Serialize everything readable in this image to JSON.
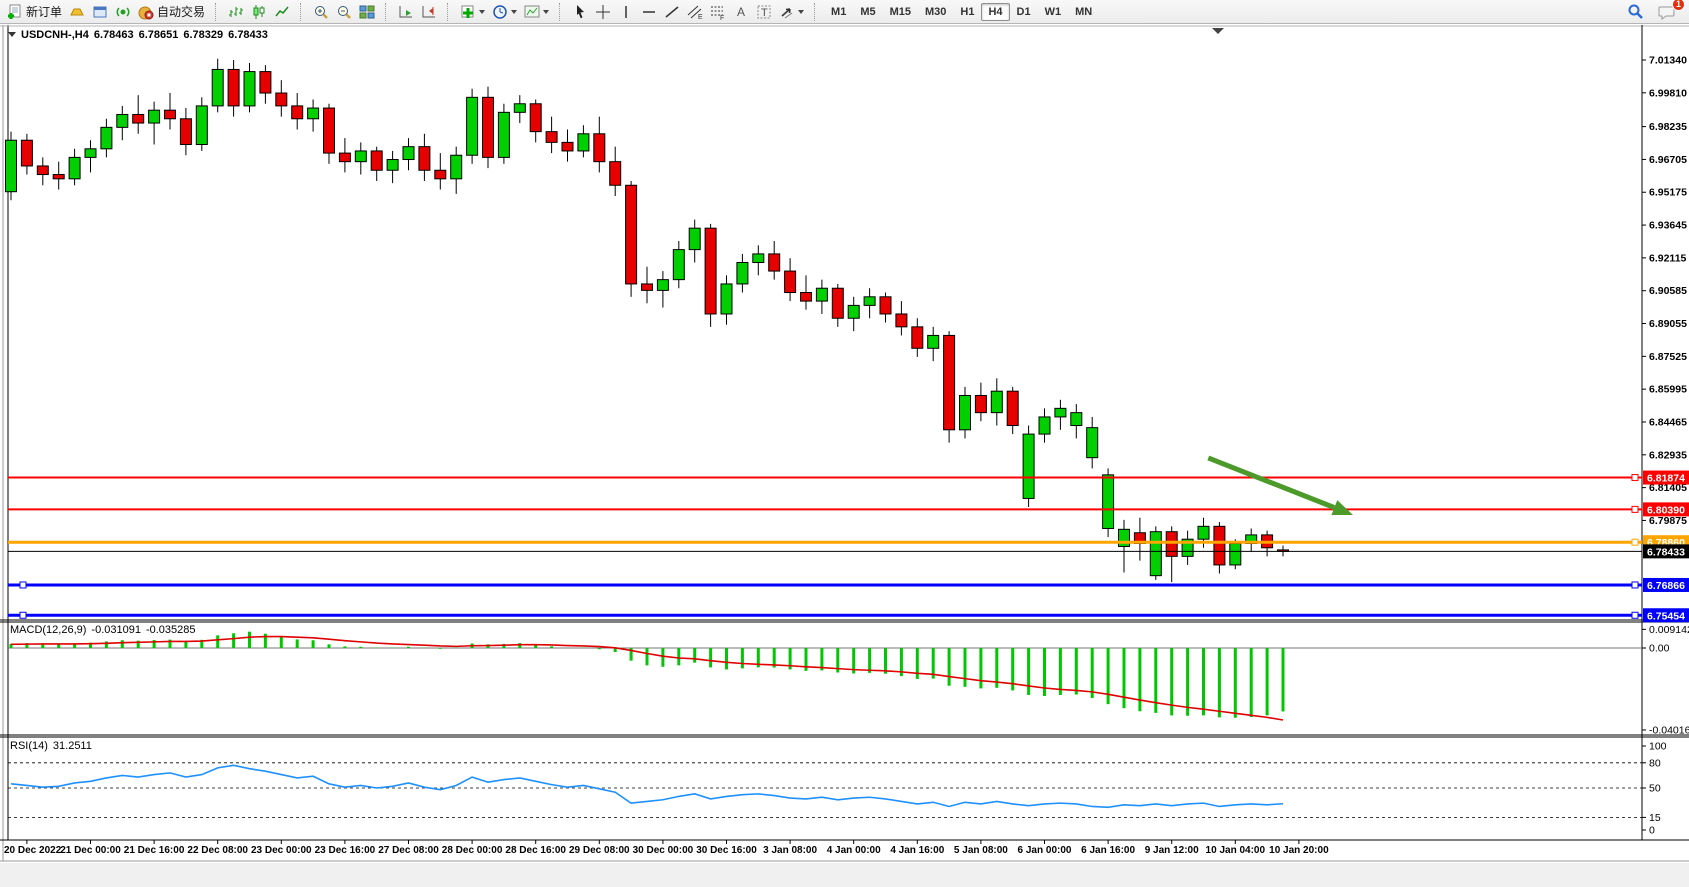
{
  "toolbar": {
    "new_order_label": "新订单",
    "auto_trading_label": "自动交易",
    "timeframes": [
      "M1",
      "M5",
      "M15",
      "M30",
      "H1",
      "H4",
      "D1",
      "W1",
      "MN"
    ],
    "active_timeframe": "H4",
    "chat_badge": "1"
  },
  "chart": {
    "title": "USDCNH-,H4",
    "open": "6.78463",
    "high": "6.78651",
    "low": "6.78329",
    "close": "6.78433"
  },
  "indicators": {
    "macd": {
      "label": "MACD(12,26,9)",
      "main_value": "-0.031091",
      "signal_value": "-0.035285"
    },
    "rsi": {
      "label": "RSI(14)",
      "value": "31.2511"
    }
  },
  "chart_data": {
    "type": "candlestick",
    "symbol": "USDCNH-",
    "timeframe": "H4",
    "current_bar": {
      "open": 6.78463,
      "high": 6.78651,
      "low": 6.78329,
      "close": 6.78433
    },
    "colors": {
      "bull": "#00d000",
      "bear": "#e60000",
      "outline": "#000000",
      "macd_histogram": "#00c800",
      "macd_signal": "#e00000",
      "rsi_line": "#1e90ff",
      "arrow": "#4c9a2a"
    },
    "price_axis": {
      "ticks": [
        "7.01340",
        "6.99810",
        "6.98235",
        "6.96705",
        "6.95175",
        "6.93645",
        "6.92115",
        "6.90585",
        "6.89055",
        "6.87525",
        "6.85995",
        "6.84465",
        "6.82935",
        "6.81405",
        "6.79875"
      ],
      "ylim": [
        6.752,
        7.03
      ]
    },
    "time_axis": {
      "labels": [
        "20 Dec 2022",
        "21 Dec 00:00",
        "21 Dec 16:00",
        "22 Dec 08:00",
        "23 Dec 00:00",
        "23 Dec 16:00",
        "27 Dec 08:00",
        "28 Dec 00:00",
        "28 Dec 16:00",
        "29 Dec 08:00",
        "30 Dec 00:00",
        "30 Dec 16:00",
        "3 Jan 08:00",
        "4 Jan 00:00",
        "4 Jan 16:00",
        "5 Jan 08:00",
        "6 Jan 00:00",
        "6 Jan 16:00",
        "9 Jan 12:00",
        "10 Jan 04:00",
        "10 Jan 20:00"
      ],
      "bars_per_label": 4
    },
    "candles": [
      [
        6.952,
        6.98,
        6.948,
        6.976
      ],
      [
        6.976,
        6.979,
        6.96,
        6.964
      ],
      [
        6.964,
        6.968,
        6.955,
        6.96
      ],
      [
        6.96,
        6.966,
        6.953,
        6.958
      ],
      [
        6.958,
        6.972,
        6.955,
        6.968
      ],
      [
        6.968,
        6.976,
        6.961,
        6.972
      ],
      [
        6.972,
        6.986,
        6.968,
        6.982
      ],
      [
        6.982,
        6.992,
        6.976,
        6.988
      ],
      [
        6.988,
        6.997,
        6.979,
        6.984
      ],
      [
        6.984,
        6.994,
        6.974,
        6.99
      ],
      [
        6.99,
        6.998,
        6.981,
        6.986
      ],
      [
        6.986,
        6.991,
        6.969,
        6.974
      ],
      [
        6.974,
        6.996,
        6.971,
        6.992
      ],
      [
        6.992,
        7.014,
        6.989,
        7.009
      ],
      [
        7.009,
        7.0134,
        6.987,
        6.992
      ],
      [
        6.992,
        7.012,
        6.989,
        7.008
      ],
      [
        7.008,
        7.011,
        6.993,
        6.998
      ],
      [
        6.998,
        7.004,
        6.987,
        6.992
      ],
      [
        6.992,
        6.998,
        6.981,
        6.986
      ],
      [
        6.986,
        6.995,
        6.98,
        6.991
      ],
      [
        6.991,
        6.993,
        6.965,
        6.97
      ],
      [
        6.97,
        6.977,
        6.961,
        6.966
      ],
      [
        6.966,
        6.975,
        6.96,
        6.971
      ],
      [
        6.971,
        6.973,
        6.957,
        6.962
      ],
      [
        6.962,
        6.971,
        6.956,
        6.967
      ],
      [
        6.967,
        6.977,
        6.962,
        6.973
      ],
      [
        6.973,
        6.979,
        6.957,
        6.962
      ],
      [
        6.962,
        6.97,
        6.953,
        6.958
      ],
      [
        6.958,
        6.973,
        6.951,
        6.969
      ],
      [
        6.969,
        7.0,
        6.965,
        6.996
      ],
      [
        6.996,
        7.001,
        6.963,
        6.968
      ],
      [
        6.968,
        6.993,
        6.965,
        6.989
      ],
      [
        6.989,
        6.997,
        6.984,
        6.993
      ],
      [
        6.993,
        6.995,
        6.975,
        6.98
      ],
      [
        6.98,
        6.987,
        6.97,
        6.975
      ],
      [
        6.975,
        6.981,
        6.966,
        6.971
      ],
      [
        6.971,
        6.983,
        6.968,
        6.979
      ],
      [
        6.979,
        6.987,
        6.961,
        6.966
      ],
      [
        6.966,
        6.973,
        6.95,
        6.955
      ],
      [
        6.955,
        6.957,
        6.903,
        6.909
      ],
      [
        6.909,
        6.917,
        6.9,
        6.906
      ],
      [
        6.906,
        6.915,
        6.898,
        6.911
      ],
      [
        6.911,
        6.929,
        6.907,
        6.925
      ],
      [
        6.925,
        6.939,
        6.919,
        6.935
      ],
      [
        6.935,
        6.937,
        6.889,
        6.895
      ],
      [
        6.895,
        6.913,
        6.89,
        6.909
      ],
      [
        6.909,
        6.923,
        6.905,
        6.919
      ],
      [
        6.919,
        6.927,
        6.913,
        6.923
      ],
      [
        6.923,
        6.929,
        6.911,
        6.915
      ],
      [
        6.915,
        6.921,
        6.901,
        6.905
      ],
      [
        6.905,
        6.913,
        6.897,
        6.901
      ],
      [
        6.901,
        6.911,
        6.895,
        6.907
      ],
      [
        6.907,
        6.909,
        6.889,
        6.893
      ],
      [
        6.893,
        6.903,
        6.887,
        6.899
      ],
      [
        6.899,
        6.907,
        6.893,
        6.903
      ],
      [
        6.903,
        6.905,
        6.891,
        6.895
      ],
      [
        6.895,
        6.901,
        6.885,
        6.889
      ],
      [
        6.889,
        6.893,
        6.875,
        6.879
      ],
      [
        6.879,
        6.889,
        6.873,
        6.885
      ],
      [
        6.885,
        6.887,
        6.835,
        6.841
      ],
      [
        6.841,
        6.861,
        6.837,
        6.857
      ],
      [
        6.857,
        6.863,
        6.845,
        6.849
      ],
      [
        6.849,
        6.865,
        6.843,
        6.859
      ],
      [
        6.859,
        6.861,
        6.839,
        6.843
      ],
      [
        6.809,
        6.843,
        6.805,
        6.839
      ],
      [
        6.839,
        6.851,
        6.835,
        6.847
      ],
      [
        6.847,
        6.855,
        6.841,
        6.851
      ],
      [
        6.843,
        6.853,
        6.837,
        6.849
      ],
      [
        6.828,
        6.847,
        6.823,
        6.842
      ],
      [
        6.795,
        6.823,
        6.791,
        6.82
      ],
      [
        6.7866,
        6.799,
        6.7745,
        6.7946
      ],
      [
        6.793,
        6.8,
        6.78,
        6.788
      ],
      [
        6.773,
        6.796,
        6.771,
        6.7935
      ],
      [
        6.7935,
        6.796,
        6.77,
        6.782
      ],
      [
        6.782,
        6.794,
        6.778,
        6.79
      ],
      [
        6.79,
        6.8,
        6.786,
        6.796
      ],
      [
        6.796,
        6.798,
        6.774,
        6.778
      ],
      [
        6.778,
        6.79,
        6.776,
        6.788
      ],
      [
        6.788,
        6.795,
        6.784,
        6.792
      ],
      [
        6.792,
        6.794,
        6.782,
        6.786
      ],
      [
        6.785,
        6.787,
        6.782,
        6.78433
      ]
    ],
    "levels": [
      {
        "price": 6.81874,
        "label": "6.81874",
        "color": "#ff0000",
        "width": 2,
        "handles": "right"
      },
      {
        "price": 6.8039,
        "label": "6.80390",
        "color": "#ff0000",
        "width": 2,
        "handles": "right"
      },
      {
        "price": 6.7886,
        "label": "6.78860",
        "color": "#ffa500",
        "width": 3,
        "handles": "right"
      },
      {
        "price": 6.76866,
        "label": "6.76866",
        "color": "#0000ff",
        "width": 3,
        "handles": "both"
      },
      {
        "price": 6.75454,
        "label": "6.75454",
        "color": "#0000ff",
        "width": 3,
        "handles": "both"
      }
    ],
    "current_price_line": {
      "price": 6.78433,
      "label": "6.78433",
      "color": "#000000"
    },
    "annotations": [
      {
        "type": "trend-arrow",
        "from_bar": 75.3,
        "from_price": 6.8279,
        "to_bar": 84.4,
        "to_price": 6.8013,
        "color": "#4c9a2a"
      }
    ],
    "macd": {
      "params": "12,26,9",
      "axis_labels": [
        "0.009142",
        "0.00",
        "-0.040162"
      ],
      "scale_max": 0.009142,
      "scale_min": -0.040162,
      "main_value": -0.031091,
      "signal_value": -0.035285,
      "histogram": [
        0.002,
        0.0024,
        0.0021,
        0.0019,
        0.0022,
        0.0026,
        0.0032,
        0.0038,
        0.0036,
        0.0039,
        0.0041,
        0.0034,
        0.004,
        0.0062,
        0.0072,
        0.008,
        0.007,
        0.0055,
        0.0042,
        0.0038,
        0.0018,
        0.0008,
        0.0006,
        0.0002,
        0.0002,
        0.0006,
        0.0002,
        -0.0004,
        0.0002,
        0.0022,
        0.0018,
        0.002,
        0.0024,
        0.0018,
        0.0008,
        0.0,
        0.0002,
        -0.0006,
        -0.002,
        -0.0062,
        -0.0085,
        -0.0092,
        -0.0085,
        -0.0072,
        -0.0095,
        -0.0105,
        -0.01,
        -0.0095,
        -0.0096,
        -0.0105,
        -0.0112,
        -0.011,
        -0.012,
        -0.0125,
        -0.0122,
        -0.0126,
        -0.0138,
        -0.0152,
        -0.015,
        -0.0185,
        -0.019,
        -0.0198,
        -0.0195,
        -0.0208,
        -0.023,
        -0.0235,
        -0.023,
        -0.0228,
        -0.0245,
        -0.0275,
        -0.0295,
        -0.031,
        -0.0318,
        -0.033,
        -0.0332,
        -0.033,
        -0.034,
        -0.0342,
        -0.0338,
        -0.033,
        -0.031091
      ],
      "signal": [
        0.0018,
        0.0019,
        0.002,
        0.002,
        0.002,
        0.0021,
        0.0023,
        0.0026,
        0.0028,
        0.003,
        0.0032,
        0.0032,
        0.0034,
        0.004,
        0.0046,
        0.0053,
        0.0056,
        0.0056,
        0.0053,
        0.005,
        0.0043,
        0.0036,
        0.003,
        0.0024,
        0.002,
        0.0017,
        0.0014,
        0.001,
        0.0008,
        0.0011,
        0.0012,
        0.0014,
        0.0016,
        0.0016,
        0.0015,
        0.0012,
        0.001,
        0.0007,
        0.0001,
        -0.0012,
        -0.0027,
        -0.004,
        -0.0049,
        -0.0053,
        -0.0062,
        -0.007,
        -0.0076,
        -0.008,
        -0.0083,
        -0.0087,
        -0.0092,
        -0.0096,
        -0.0101,
        -0.0106,
        -0.0109,
        -0.0112,
        -0.0117,
        -0.0124,
        -0.0129,
        -0.014,
        -0.015,
        -0.016,
        -0.0167,
        -0.0175,
        -0.0186,
        -0.0196,
        -0.0203,
        -0.0208,
        -0.0215,
        -0.0227,
        -0.0241,
        -0.0255,
        -0.0268,
        -0.028,
        -0.0291,
        -0.03,
        -0.031,
        -0.032,
        -0.033,
        -0.034,
        -0.035285
      ]
    },
    "rsi": {
      "params": "14",
      "axis_labels": [
        "100",
        "80",
        "50",
        "15",
        "0"
      ],
      "level_lines": [
        80,
        50,
        15
      ],
      "current": 31.2511,
      "values": [
        55,
        53,
        51,
        52,
        56,
        58,
        62,
        65,
        63,
        66,
        68,
        63,
        66,
        74,
        77,
        73,
        70,
        66,
        62,
        64,
        55,
        51,
        53,
        50,
        52,
        56,
        51,
        48,
        53,
        63,
        57,
        60,
        62,
        58,
        54,
        51,
        53,
        49,
        45,
        32,
        34,
        36,
        40,
        43,
        37,
        40,
        42,
        43,
        41,
        38,
        37,
        39,
        36,
        38,
        39,
        37,
        34,
        31,
        33,
        28,
        33,
        31,
        34,
        31,
        29,
        31,
        32,
        31,
        28,
        27,
        30,
        29,
        31,
        29,
        31,
        32,
        28,
        30,
        31,
        30,
        31.2511
      ]
    }
  }
}
